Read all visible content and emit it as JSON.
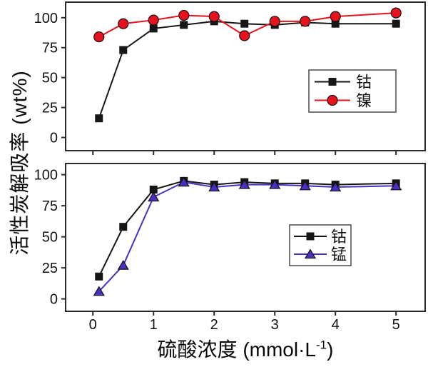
{
  "figure": {
    "background": "#ffffff",
    "ylabel": "活性炭解吸率 (wt%)",
    "xlabel_main": "硫酸浓度 (mmol·L",
    "xlabel_sup": "-1",
    "xlabel_close": ")"
  },
  "colors": {
    "cobalt": "#161616",
    "nickel": "#e8121f",
    "manganese": "#4b2fc0",
    "frame": "#2b2b2b",
    "legend_border": "#4a4a4a"
  },
  "chart_data": [
    {
      "type": "line",
      "panel": "top",
      "title": "",
      "xlabel": "硫酸浓度 (mmol·L⁻¹)",
      "ylabel": "活性炭解吸率 (wt%)",
      "x": [
        0.1,
        0.5,
        1,
        1.5,
        2,
        2.5,
        3,
        3.5,
        4,
        5
      ],
      "series": [
        {
          "name": "钴",
          "marker": "square",
          "color": "#161616",
          "values": [
            16,
            73,
            91,
            94,
            97,
            95,
            94,
            96,
            95,
            95
          ]
        },
        {
          "name": "镍",
          "marker": "circle",
          "color": "#e8121f",
          "values": [
            84,
            95,
            98,
            102,
            101,
            85,
            97,
            97,
            101,
            104
          ]
        }
      ],
      "xticks": [
        0,
        1,
        2,
        3,
        4,
        5
      ],
      "yticks": [
        0,
        25,
        50,
        75,
        100
      ],
      "show_xtick_labels": false,
      "xlim": [
        -0.45,
        5.48
      ],
      "ylim": [
        -11,
        113
      ],
      "grid": false,
      "legend_position": "right-center"
    },
    {
      "type": "line",
      "panel": "bottom",
      "title": "",
      "xlabel": "硫酸浓度 (mmol·L⁻¹)",
      "ylabel": "活性炭解吸率 (wt%)",
      "x": [
        0.1,
        0.5,
        1,
        1.5,
        2,
        2.5,
        3,
        3.5,
        4,
        5
      ],
      "series": [
        {
          "name": "钴",
          "marker": "square",
          "color": "#161616",
          "values": [
            18,
            58,
            88,
            95,
            92,
            94,
            93,
            93,
            92,
            93
          ]
        },
        {
          "name": "锰",
          "marker": "triangle",
          "color": "#4b2fc0",
          "values": [
            6,
            27,
            82,
            94,
            90,
            92,
            92,
            91,
            90,
            91
          ]
        }
      ],
      "xticks": [
        0,
        1,
        2,
        3,
        4,
        5
      ],
      "yticks": [
        0,
        25,
        50,
        75,
        100
      ],
      "show_xtick_labels": true,
      "xlim": [
        -0.45,
        5.48
      ],
      "ylim": [
        -10,
        109
      ],
      "grid": false,
      "legend_position": "right-center"
    }
  ]
}
